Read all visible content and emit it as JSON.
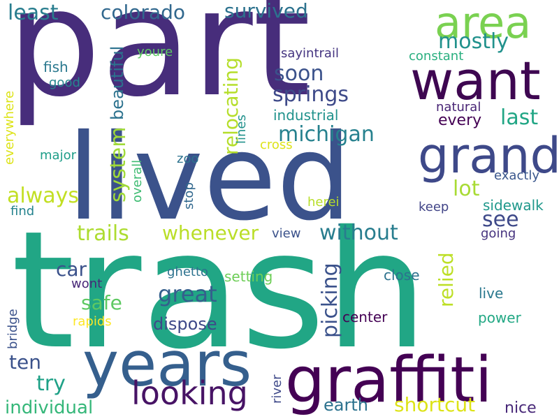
{
  "words": [
    {
      "text": "part",
      "color": "#472d7b"
    },
    {
      "text": "trash",
      "color": "#21a685"
    },
    {
      "text": "lived",
      "color": "#3b528b"
    },
    {
      "text": "years",
      "color": "#355f8d"
    },
    {
      "text": "graffiti",
      "color": "#440154"
    },
    {
      "text": "want",
      "color": "#3e0751"
    },
    {
      "text": "area",
      "color": "#7ad151"
    },
    {
      "text": "grand",
      "color": "#3e4989"
    },
    {
      "text": "looking",
      "color": "#471365"
    },
    {
      "text": "colorado",
      "color": "#31688e"
    },
    {
      "text": "survived",
      "color": "#2c728e"
    },
    {
      "text": "least",
      "color": "#287d8e"
    },
    {
      "text": "springs",
      "color": "#3e4a89"
    },
    {
      "text": "michigan",
      "color": "#26818e"
    },
    {
      "text": "soon",
      "color": "#3b528b"
    },
    {
      "text": "mostly",
      "color": "#21918c"
    },
    {
      "text": "last",
      "color": "#21a685"
    },
    {
      "text": "always",
      "color": "#c2df23"
    },
    {
      "text": "lot",
      "color": "#a8db34"
    },
    {
      "text": "see",
      "color": "#3e4989"
    },
    {
      "text": "trails",
      "color": "#addc30"
    },
    {
      "text": "whenever",
      "color": "#bade28"
    },
    {
      "text": "without",
      "color": "#287d8e"
    },
    {
      "text": "car",
      "color": "#3b528b"
    },
    {
      "text": "safe",
      "color": "#5ec962"
    },
    {
      "text": "great",
      "color": "#355f8d"
    },
    {
      "text": "ten",
      "color": "#3b528b"
    },
    {
      "text": "try",
      "color": "#1fa187"
    },
    {
      "text": "dispose",
      "color": "#3e4989"
    },
    {
      "text": "earth",
      "color": "#2c728e"
    },
    {
      "text": "shortcut",
      "color": "#dde318"
    },
    {
      "text": "individual",
      "color": "#35b779"
    },
    {
      "text": "nice",
      "color": "#482878"
    },
    {
      "text": "fish",
      "color": "#2a788e"
    },
    {
      "text": "good",
      "color": "#25858e"
    },
    {
      "text": "youre",
      "color": "#5ec962"
    },
    {
      "text": "sayintrail",
      "color": "#453581"
    },
    {
      "text": "constant",
      "color": "#29af7f"
    },
    {
      "text": "industrial",
      "color": "#20928c"
    },
    {
      "text": "natural",
      "color": "#482475"
    },
    {
      "text": "every",
      "color": "#440154"
    },
    {
      "text": "cross",
      "color": "#dde318"
    },
    {
      "text": "major",
      "color": "#1f9e89"
    },
    {
      "text": "zoo",
      "color": "#2c728e"
    },
    {
      "text": "exactly",
      "color": "#39568c"
    },
    {
      "text": "herei",
      "color": "#b8de29"
    },
    {
      "text": "find",
      "color": "#25838e"
    },
    {
      "text": "keep",
      "color": "#414487"
    },
    {
      "text": "sidewalk",
      "color": "#1f988b"
    },
    {
      "text": "view",
      "color": "#3b528b"
    },
    {
      "text": "going",
      "color": "#46337f"
    },
    {
      "text": "ghetto",
      "color": "#2c728e"
    },
    {
      "text": "setting",
      "color": "#6ece58"
    },
    {
      "text": "close",
      "color": "#2c728e"
    },
    {
      "text": "wont",
      "color": "#482878"
    },
    {
      "text": "live",
      "color": "#2a788e"
    },
    {
      "text": "center",
      "color": "#440154"
    },
    {
      "text": "power",
      "color": "#22a884"
    },
    {
      "text": "rapids",
      "color": "#fde725"
    },
    {
      "text": "beautiful",
      "color": "#2c728e"
    },
    {
      "text": "system",
      "color": "#a0da39"
    },
    {
      "text": "relocating",
      "color": "#b5de2b"
    },
    {
      "text": "picking",
      "color": "#3b528b"
    },
    {
      "text": "relied",
      "color": "#bddf26"
    },
    {
      "text": "everywhere",
      "color": "#dde318"
    },
    {
      "text": "overall",
      "color": "#3fbc73"
    },
    {
      "text": "stop",
      "color": "#31688e"
    },
    {
      "text": "lines",
      "color": "#21918c"
    },
    {
      "text": "bridge",
      "color": "#3b528b"
    },
    {
      "text": "river",
      "color": "#3e4989"
    }
  ]
}
